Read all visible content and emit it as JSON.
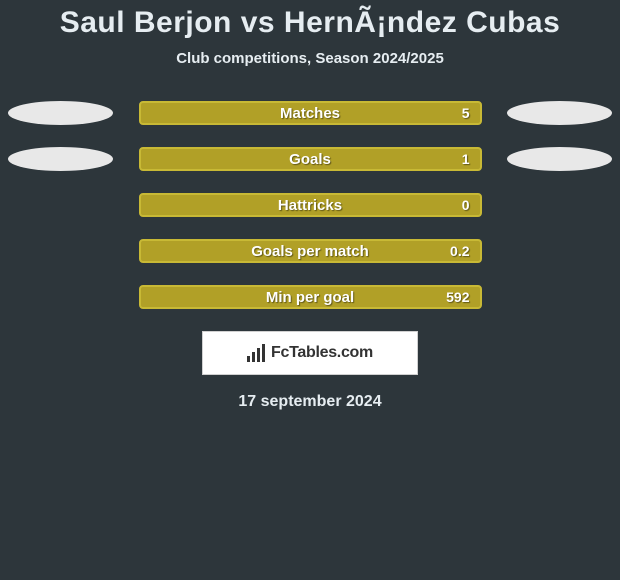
{
  "title": "Saul Berjon vs HernÃ¡ndez Cubas",
  "subtitle": "Club competitions, Season 2024/2025",
  "date": "17 september 2024",
  "logo_text": "FcTables.com",
  "colors": {
    "page_bg": "#2d363b",
    "bar_fill": "#b1a027",
    "bar_border": "#c8b935",
    "pill_bg": "#e8e8e8",
    "text": "#e6edf1",
    "logo_bg": "#ffffff",
    "logo_text": "#333333"
  },
  "stats": [
    {
      "label": "Matches",
      "value": "5",
      "show_pills": true
    },
    {
      "label": "Goals",
      "value": "1",
      "show_pills": true
    },
    {
      "label": "Hattricks",
      "value": "0",
      "show_pills": false
    },
    {
      "label": "Goals per match",
      "value": "0.2",
      "show_pills": false
    },
    {
      "label": "Min per goal",
      "value": "592",
      "show_pills": false
    }
  ]
}
